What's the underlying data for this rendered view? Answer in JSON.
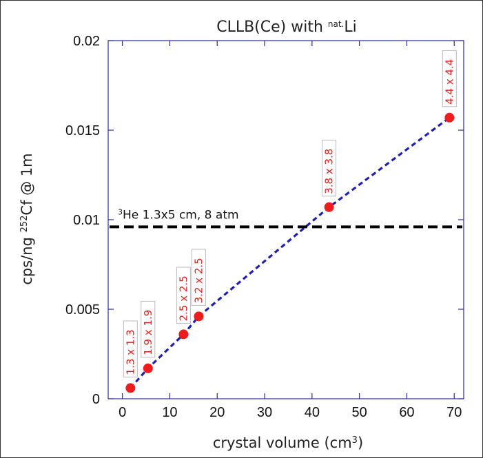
{
  "chart_data": {
    "type": "scatter",
    "title": "CLLB(Ce) with ",
    "title_sup": "nat.",
    "title_tail": "Li",
    "xlabel": "crystal volume (cm",
    "xlabel_sup": "3",
    "xlabel_tail": ")",
    "ylabel_pre": "cps/ng ",
    "ylabel_sup": "252",
    "ylabel_tail": "Cf @ 1m",
    "xlim": [
      -3,
      72
    ],
    "ylim": [
      0,
      0.02
    ],
    "xticks": [
      "0",
      "10",
      "20",
      "30",
      "40",
      "50",
      "60",
      "70"
    ],
    "xtick_values": [
      0,
      10,
      20,
      30,
      40,
      50,
      60,
      70
    ],
    "yticks": [
      "0",
      "0.005",
      "0.01",
      "0.015",
      "0.02"
    ],
    "ytick_values": [
      0,
      0.005,
      0.01,
      0.015,
      0.02
    ],
    "points": [
      {
        "label": "1.3 x 1.3",
        "x": 1.7,
        "y": 0.0006
      },
      {
        "label": "1.9 x 1.9",
        "x": 5.4,
        "y": 0.0017
      },
      {
        "label": "2.5 x 2.5",
        "x": 12.9,
        "y": 0.0036
      },
      {
        "label": "3.2 x 2.5",
        "x": 16.1,
        "y": 0.0046
      },
      {
        "label": "3.8 x 3.8",
        "x": 43.6,
        "y": 0.0107
      },
      {
        "label": "4.4 x 4.4",
        "x": 69.0,
        "y": 0.0157
      }
    ],
    "reference_line": {
      "label_sup": "3",
      "label": "He 1.3x5 cm, 8 atm",
      "y": 0.0096
    },
    "colors": {
      "points": "#ee1c1c",
      "fit_line": "#1f1fb4",
      "reference_line": "#000000",
      "axes": "#2a2a9a",
      "labels": "#e0201e"
    }
  }
}
